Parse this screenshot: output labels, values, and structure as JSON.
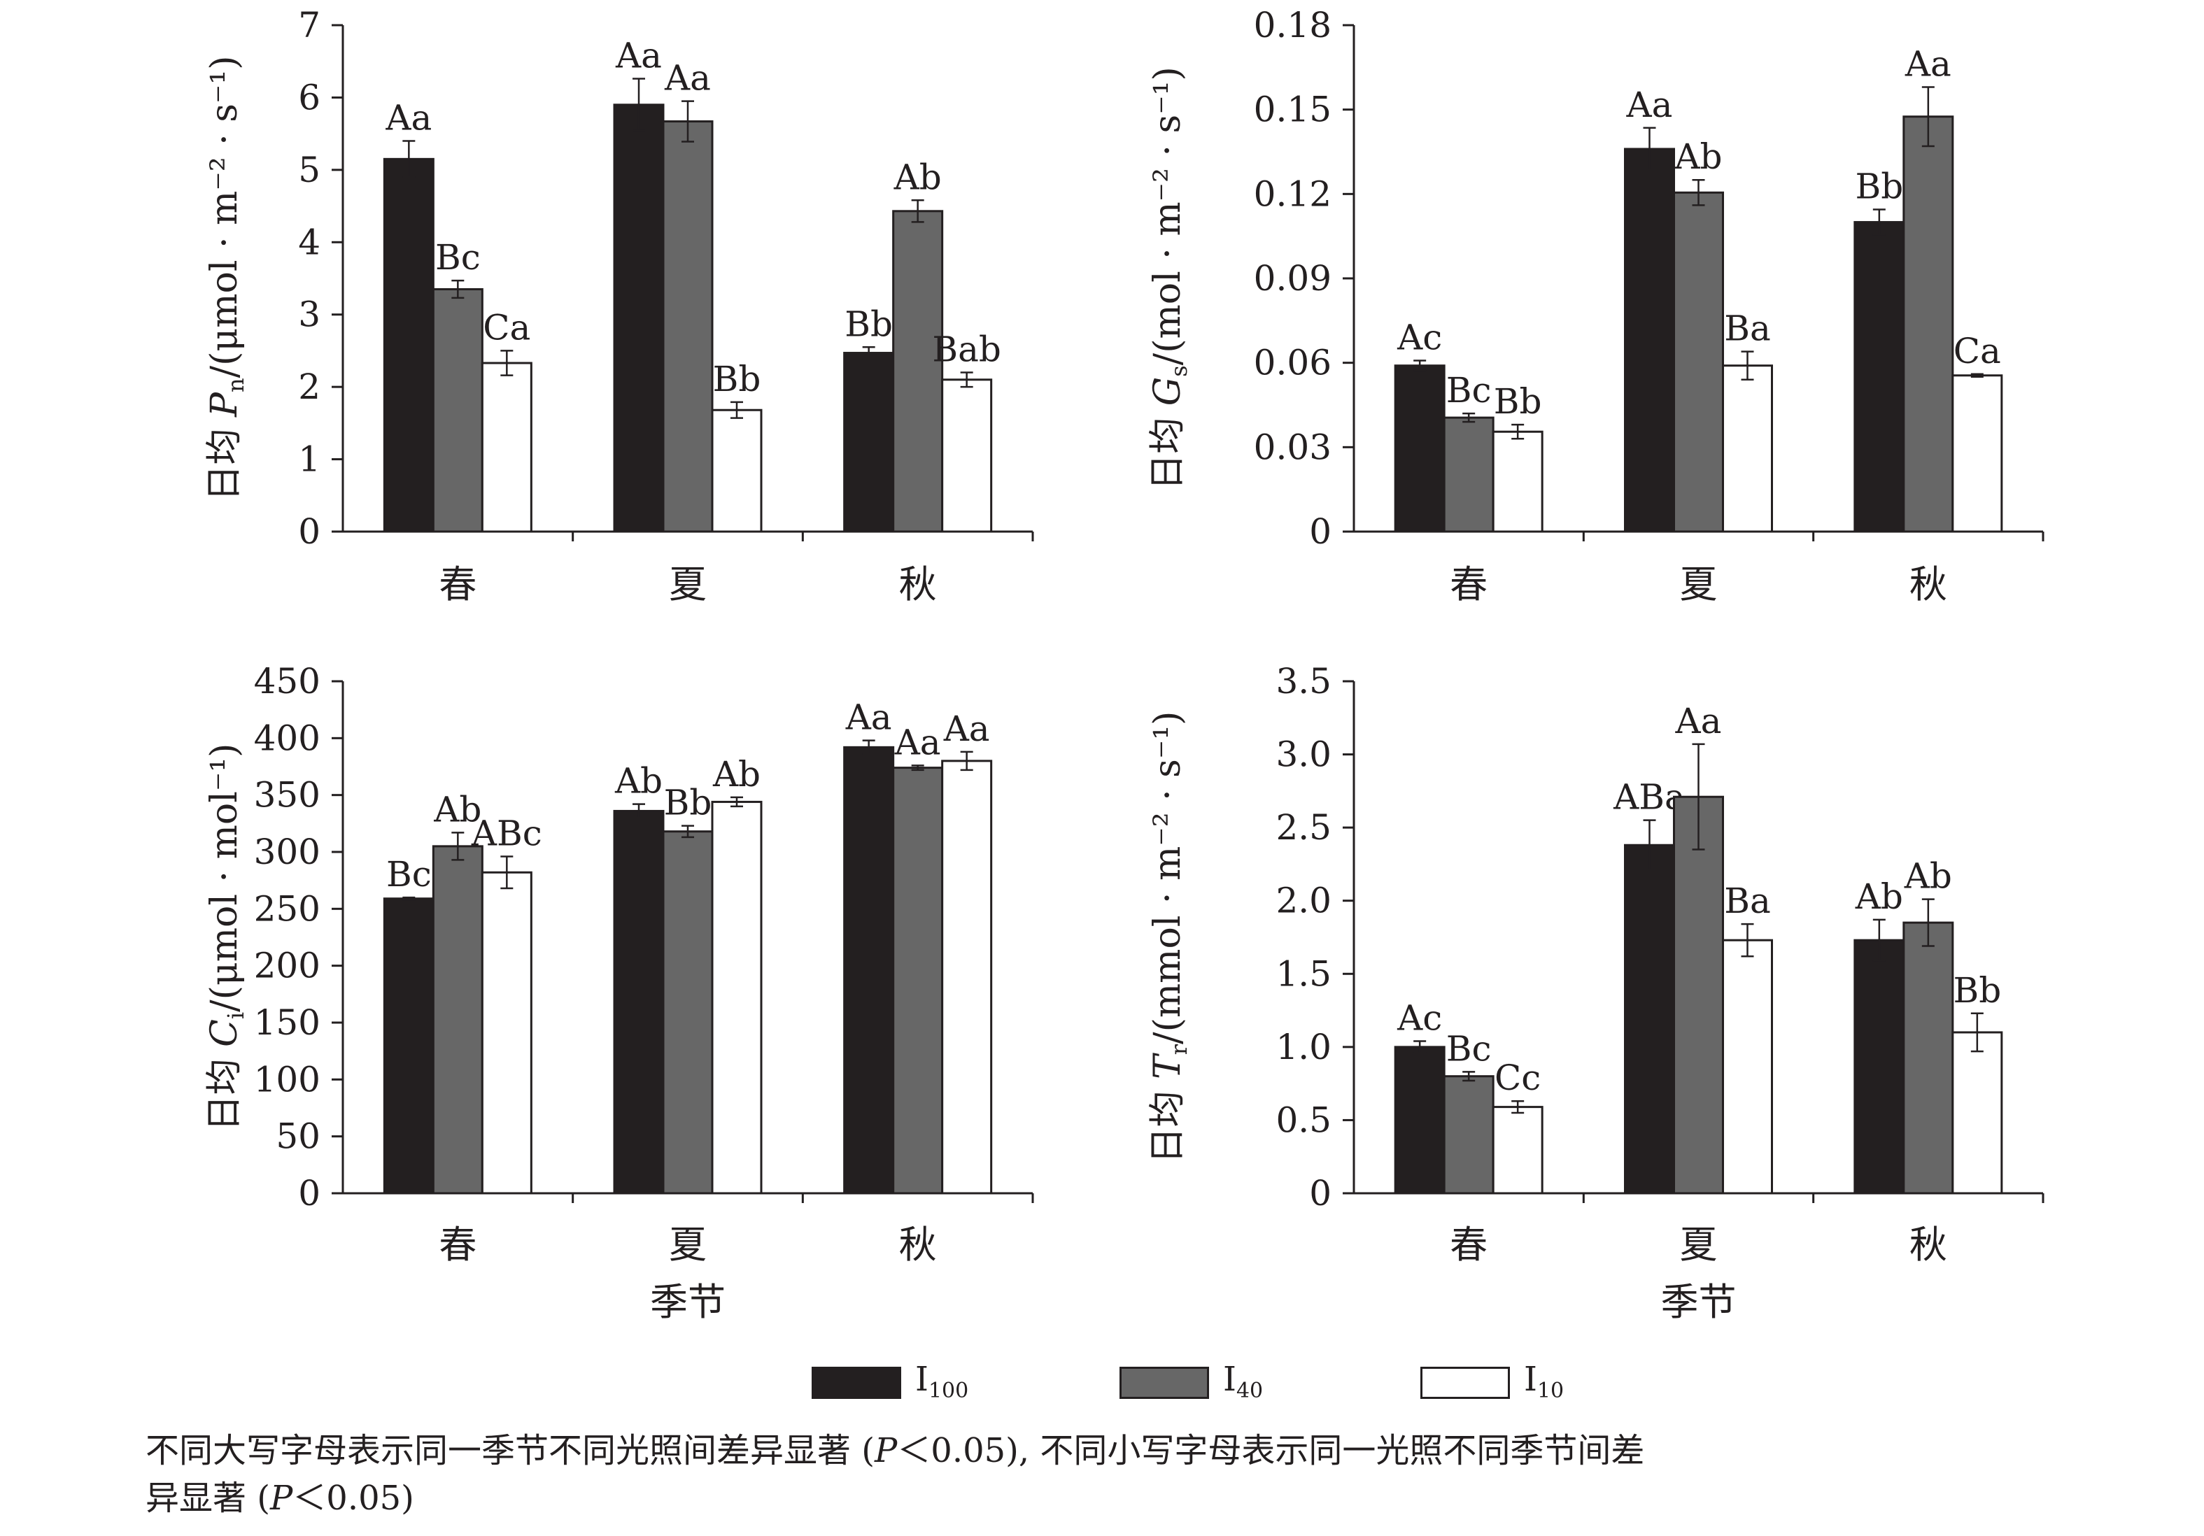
{
  "colors": {
    "I100": "#231f20",
    "I40": "#676767",
    "I10": "#ffffff",
    "ink": "#231f20"
  },
  "legend": {
    "items": [
      {
        "key": "I100",
        "main": "I",
        "sub": "100"
      },
      {
        "key": "I40",
        "main": "I",
        "sub": "40"
      },
      {
        "key": "I10",
        "main": "I",
        "sub": "10"
      }
    ]
  },
  "footnote": {
    "line1_a": "不同大写字母表示同一季节不同光照间差异显著 (",
    "p1": "P",
    "line1_b": "＜0.05), 不同小写字母表示同一光照不同季节间差",
    "line2_a": "异显著 (",
    "p2": "P",
    "line2_b": "＜0.05)"
  },
  "chart_data": [
    {
      "type": "bar",
      "categories": [
        "春",
        "夏",
        "秋"
      ],
      "series_names": [
        "I100",
        "I40",
        "I10"
      ],
      "ylabel_prefix": "日均 ",
      "ylabel_var": "P",
      "ylabel_sub": "n",
      "ylabel_unit": "/(μmol · m⁻² · s⁻¹)",
      "xlabel": "",
      "ylim": [
        0,
        7
      ],
      "yticks": [
        "0",
        "1",
        "2",
        "3",
        "4",
        "5",
        "6",
        "7"
      ],
      "groups": [
        {
          "values": [
            5.15,
            3.35,
            2.33
          ],
          "errors": [
            0.25,
            0.12,
            0.17
          ],
          "labels": [
            "Aa",
            "Bc",
            "Ca"
          ]
        },
        {
          "values": [
            5.9,
            5.67,
            1.68
          ],
          "errors": [
            0.36,
            0.28,
            0.11
          ],
          "labels": [
            "Aa",
            "Aa",
            "Bb"
          ]
        },
        {
          "values": [
            2.47,
            4.43,
            2.1
          ],
          "errors": [
            0.08,
            0.15,
            0.1
          ],
          "labels": [
            "Bb",
            "Ab",
            "Bab"
          ]
        }
      ]
    },
    {
      "type": "bar",
      "categories": [
        "春",
        "夏",
        "秋"
      ],
      "series_names": [
        "I100",
        "I40",
        "I10"
      ],
      "ylabel_prefix": "日均 ",
      "ylabel_var": "G",
      "ylabel_sub": "s",
      "ylabel_unit": "/(mol · m⁻² · s⁻¹)",
      "xlabel": "",
      "ylim": [
        0,
        0.18
      ],
      "yticks": [
        "0",
        "0.03",
        "0.06",
        "0.09",
        "0.12",
        "0.15",
        "0.18"
      ],
      "groups": [
        {
          "values": [
            0.059,
            0.0405,
            0.0355
          ],
          "errors": [
            0.0018,
            0.0015,
            0.0025
          ],
          "labels": [
            "Ac",
            "Bc",
            "Bb"
          ]
        },
        {
          "values": [
            0.136,
            0.1205,
            0.059
          ],
          "errors": [
            0.0075,
            0.0045,
            0.005
          ],
          "labels": [
            "Aa",
            "Ab",
            "Ba"
          ]
        },
        {
          "values": [
            0.11,
            0.1475,
            0.0555
          ],
          "errors": [
            0.0045,
            0.0105,
            0.0005
          ],
          "labels": [
            "Bb",
            "Aa",
            "Ca"
          ]
        }
      ]
    },
    {
      "type": "bar",
      "categories": [
        "春",
        "夏",
        "秋"
      ],
      "series_names": [
        "I100",
        "I40",
        "I10"
      ],
      "ylabel_prefix": "日均 ",
      "ylabel_var": "C",
      "ylabel_sub": "i",
      "ylabel_unit": "/(μmol · mol⁻¹)",
      "xlabel": "季节",
      "ylim": [
        0,
        450
      ],
      "yticks": [
        "0",
        "50",
        "100",
        "150",
        "200",
        "250",
        "300",
        "350",
        "400",
        "450"
      ],
      "groups": [
        {
          "values": [
            259,
            305,
            282
          ],
          "errors": [
            1,
            12,
            14
          ],
          "labels": [
            "Bc",
            "Ab",
            "ABc"
          ]
        },
        {
          "values": [
            336,
            318,
            344
          ],
          "errors": [
            6,
            5,
            4
          ],
          "labels": [
            "Ab",
            "Bb",
            "Ab"
          ]
        },
        {
          "values": [
            392,
            374,
            380
          ],
          "errors": [
            6,
            2,
            8
          ],
          "labels": [
            "Aa",
            "Aa",
            "Aa"
          ]
        }
      ]
    },
    {
      "type": "bar",
      "categories": [
        "春",
        "夏",
        "秋"
      ],
      "series_names": [
        "I100",
        "I40",
        "I10"
      ],
      "ylabel_prefix": "日均 ",
      "ylabel_var": "T",
      "ylabel_sub": "r",
      "ylabel_unit": "/(mmol · m⁻² · s⁻¹)",
      "xlabel": "季节",
      "ylim": [
        0,
        3.5
      ],
      "yticks": [
        "0",
        "0.5",
        "1.0",
        "1.5",
        "2.0",
        "2.5",
        "3.0",
        "3.5"
      ],
      "groups": [
        {
          "values": [
            1.0,
            0.8,
            0.59
          ],
          "errors": [
            0.04,
            0.03,
            0.04
          ],
          "labels": [
            "Ac",
            "Bc",
            "Cc"
          ]
        },
        {
          "values": [
            2.38,
            2.71,
            1.73
          ],
          "errors": [
            0.17,
            0.36,
            0.11
          ],
          "labels": [
            "ABa",
            "Aa",
            "Ba"
          ]
        },
        {
          "values": [
            1.73,
            1.85,
            1.1
          ],
          "errors": [
            0.14,
            0.16,
            0.13
          ],
          "labels": [
            "Ab",
            "Ab",
            "Bb"
          ]
        }
      ]
    }
  ]
}
